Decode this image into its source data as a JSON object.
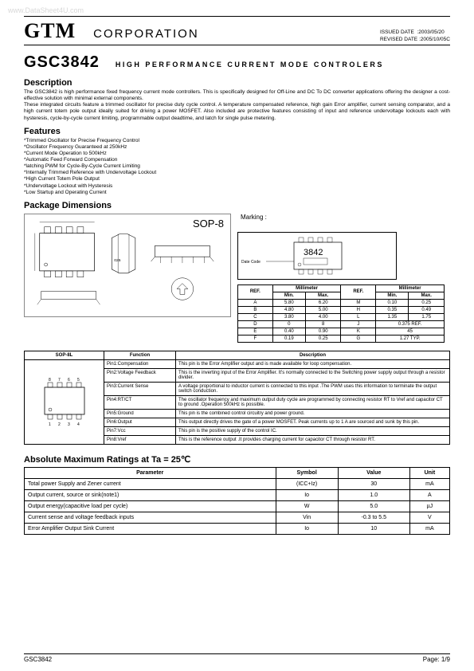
{
  "watermark": "www.DataSheet4U.com",
  "header": {
    "brand": "GTM",
    "corp": "CORPORATION",
    "issued_label": "ISSUED DATE",
    "issued_date": ":2003/05/20",
    "revised_label": "REVISED DATE",
    "revised_date": ":2005/10/05C"
  },
  "title": {
    "part": "GSC3842",
    "subtitle": "HIGH PERFORMANCE CURRENT MODE CONTROLERS"
  },
  "sections": {
    "description_h": "Description",
    "description_p1": "The GSC3842 is high performance fixed frequency current mode controllers. This is specifically designed for Off-Line and DC To DC converter applications offering the designer a cost-effective solution with minimal external components.",
    "description_p2": "These integrated circuits feature a trimmed oscillator for precise duty cycle control. A temperature compensated reference, high gain Error amplifier, current sensing comparator, and a high current totem pole output ideally suited for driving a power MOSFET. Also included are protective features consisting of input and reference undervoltage lockouts each with hysteresis, cycle-by-cycle current limiting, programmable output deadtime, and latch for single pulse metering.",
    "features_h": "Features",
    "features": [
      "*Trimmed Oscillator for Precise Frequency Control",
      "*Oscillator Frequency Guaranteed at 250kHz",
      "*Current Mode Operation to 500kHz",
      "*Automatic Feed Forward Compensation",
      "*latching PWM for Cycle-By-Cycle Current Limiting",
      "*Internally Trimmed Reference with Undervoltage Lockout",
      "*High Current Totem Pole Output",
      "*Undervoltage Lockout with Hysteresis",
      "*Low Startup and Operating Current"
    ],
    "package_h": "Package Dimensions",
    "sop_label": "SOP-8",
    "marking_label": "Marking :",
    "marking_text": "3842",
    "date_code_label": "Date Code"
  },
  "dim_table": {
    "ref_h": "REF.",
    "mm_h": "Millimeter",
    "min_h": "Min.",
    "max_h": "Max.",
    "rows_left": [
      [
        "A",
        "5.80",
        "6.20"
      ],
      [
        "B",
        "4.80",
        "5.00"
      ],
      [
        "C",
        "3.80",
        "4.00"
      ],
      [
        "D",
        "0",
        "8"
      ],
      [
        "E",
        "0.40",
        "0.90"
      ],
      [
        "F",
        "0.19",
        "0.25"
      ]
    ],
    "rows_right": [
      [
        "M",
        "0.10",
        "0.25"
      ],
      [
        "H",
        "0.35",
        "0.49"
      ],
      [
        "L",
        "1.35",
        "1.75"
      ],
      [
        "J",
        "0.375 REF."
      ],
      [
        "K",
        "45"
      ],
      [
        "G",
        "1.27 TYP."
      ]
    ]
  },
  "pin_table": {
    "col1": "SOP-8L",
    "col2": "Function",
    "col3": "Description",
    "rows": [
      [
        "Pin1:Compensation",
        "This pin is the Error Amplifier output and is made available for loop compensation."
      ],
      [
        "Pin2:Voltage Feedback",
        "This is the inverting input of the Error Amplifier. It's normally connected to the Switching power supply output through a resistor divider."
      ],
      [
        "Pin3:Current Sense",
        "A voltage proportional to inductor current is connected to this input .The PWM uses this information to terminate the output switch conduction."
      ],
      [
        "Pin4:RT/CT",
        "The oscillator frequency and maximum output duty cycle are programmed by connecting resistor RT to Vref and capacitor CT to ground .Operation 500kHz is possible."
      ],
      [
        "Pin5:Ground",
        "This pin is the combined control circuitry and power ground."
      ],
      [
        "Pin6:Output",
        "This output directly drives the gate of a power MOSFET. Peak currents up to 1 A are sourced and sunk by this pin."
      ],
      [
        "Pin7:Vcc",
        "This pin is the positive supply of the control IC."
      ],
      [
        "Pin8:Vref",
        "This is the reference output .It provides charging current for capacitor CT through resistor RT."
      ]
    ],
    "chip_pins_top": [
      "8",
      "7",
      "6",
      "5"
    ],
    "chip_pins_bot": [
      "1",
      "2",
      "3",
      "4"
    ]
  },
  "abs": {
    "title": "Absolute Maximum Ratings at Ta = 25℃",
    "headers": [
      "Parameter",
      "Symbol",
      "Value",
      "Unit"
    ],
    "rows": [
      [
        "Total power Supply and Zener current",
        "(ICC+Iz)",
        "30",
        "mA"
      ],
      [
        "Output current, source or sink(note1)",
        "Io",
        "1.0",
        "A"
      ],
      [
        "Output energy(capacitive load per cycle)",
        "W",
        "5.0",
        "µJ"
      ],
      [
        "Current sense and voltage feedback inputs",
        "Vin",
        "-0.3 to 5.5",
        "V"
      ],
      [
        "Error Amplifier Output Sink Current",
        "Io",
        "10",
        "mA"
      ]
    ]
  },
  "footer": {
    "left": "GSC3842",
    "right": "Page: 1/9"
  }
}
